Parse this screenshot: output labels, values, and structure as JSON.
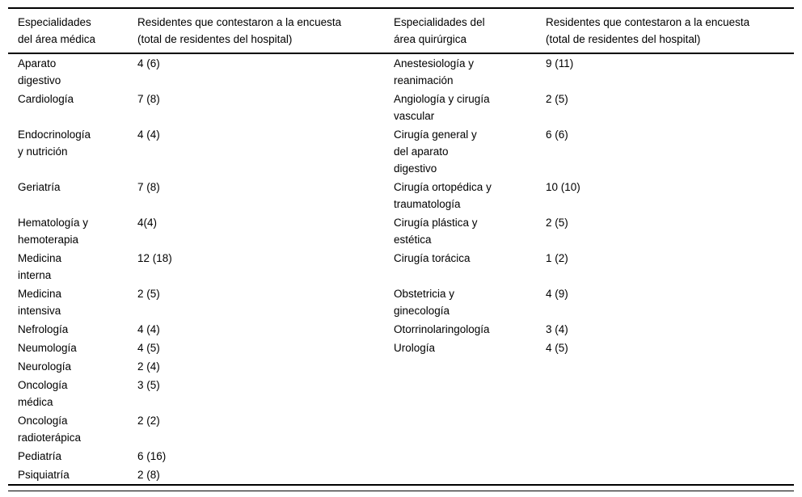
{
  "table": {
    "headers": [
      "Especialidades del área médica",
      "Residentes que contestaron a la encuesta (total de residentes del hospital)",
      "Especialidades del área quirúrgica",
      "Residentes que contestaron a la encuesta (total de residentes del hospital)"
    ],
    "rows": [
      [
        "Aparato digestivo",
        "4 (6)",
        "Anestesiología y reanimación",
        "9 (11)"
      ],
      [
        "Cardiología",
        "7 (8)",
        "Angiología y cirugía vascular",
        "2 (5)"
      ],
      [
        "Endocrinología y nutrición",
        "4 (4)",
        "Cirugía general y del aparato digestivo",
        "6 (6)"
      ],
      [
        "Geriatría",
        "7 (8)",
        "Cirugía ortopédica y traumatología",
        "10 (10)"
      ],
      [
        "Hematología y hemoterapia",
        "4(4)",
        "Cirugía plástica y estética",
        "2 (5)"
      ],
      [
        "Medicina interna",
        "12 (18)",
        "Cirugía torácica",
        "1 (2)"
      ],
      [
        "Medicina intensiva",
        "2 (5)",
        "Obstetricia y ginecología",
        "4 (9)"
      ],
      [
        "Nefrología",
        "4 (4)",
        "Otorrinolaringología",
        "3 (4)"
      ],
      [
        "Neumología",
        "4 (5)",
        "Urología",
        "4 (5)"
      ],
      [
        "Neurología",
        "2 (4)",
        "",
        ""
      ],
      [
        "Oncología médica",
        "3 (5)",
        "",
        ""
      ],
      [
        "Oncología radioterápica",
        "2 (2)",
        "",
        ""
      ],
      [
        "Pediatría",
        "6 (16)",
        "",
        ""
      ],
      [
        "Psiquiatría",
        "2 (8)",
        "",
        ""
      ]
    ]
  }
}
